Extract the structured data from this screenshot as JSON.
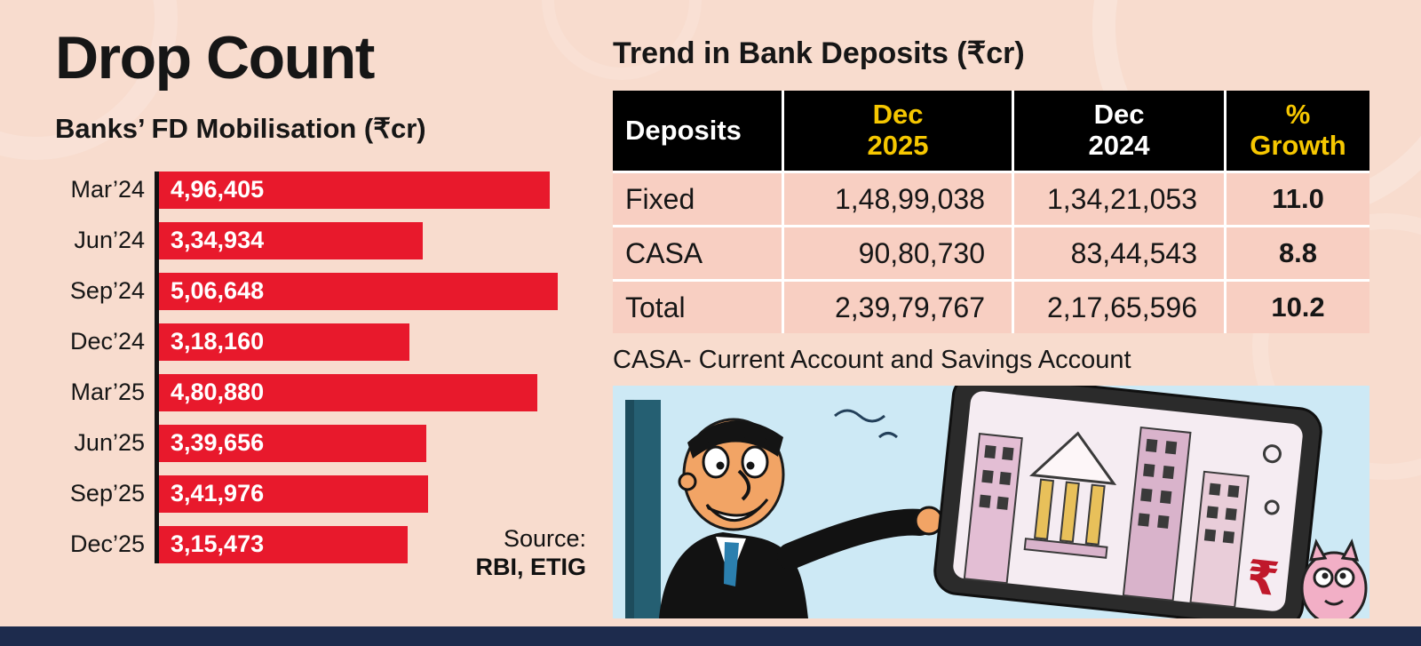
{
  "left_panel": {
    "title": "Drop Count",
    "subtitle": "Banks’ FD Mobilisation (₹cr)",
    "source_label": "Source:",
    "source_value": "RBI, ETIG"
  },
  "chart_data": {
    "type": "bar",
    "orientation": "horizontal",
    "title": "Banks’ FD Mobilisation (₹cr)",
    "categories": [
      "Mar’24",
      "Jun’24",
      "Sep’24",
      "Dec’24",
      "Mar’25",
      "Jun’25",
      "Sep’25",
      "Dec’25"
    ],
    "values": [
      496405,
      334934,
      506648,
      318160,
      480880,
      339656,
      341976,
      315473
    ],
    "value_labels": [
      "4,96,405",
      "3,34,934",
      "5,06,648",
      "3,18,160",
      "4,80,880",
      "3,39,656",
      "3,41,976",
      "3,15,473"
    ],
    "xlim": [
      0,
      506648
    ],
    "grid": false,
    "legend": "none",
    "bar_color": "#e8192c"
  },
  "table": {
    "title": "Trend in Bank Deposits (₹cr)",
    "headers": [
      "Deposits",
      "Dec\n2025",
      "Dec\n2024",
      "%\nGrowth"
    ],
    "rows": [
      [
        "Fixed",
        "1,48,99,038",
        "1,34,21,053",
        "11.0"
      ],
      [
        "CASA",
        "90,80,730",
        "83,44,543",
        "8.8"
      ],
      [
        "Total",
        "2,39,79,767",
        "2,17,65,596",
        "10.2"
      ]
    ],
    "footnote": "CASA- Current Account and Savings Account"
  },
  "colors": {
    "background": "#f8dcce",
    "bar_red": "#e8192c",
    "header_black": "#000000",
    "accent_yellow": "#f6c700",
    "row_pink": "#f8cfc2",
    "bottom_strip_navy": "#1d2b4d",
    "text_black": "#161616"
  }
}
